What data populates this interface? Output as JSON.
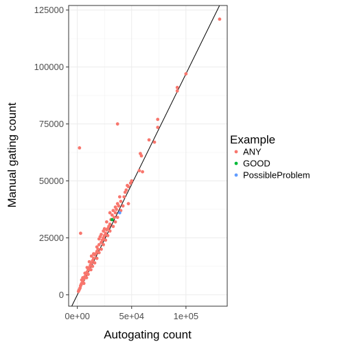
{
  "chart_data": {
    "type": "scatter",
    "xlabel": "Autogating count",
    "ylabel": "Manual gating count",
    "xlim": [
      -8000,
      138000
    ],
    "ylim": [
      -5000,
      127000
    ],
    "x_ticks": [
      0,
      50000,
      100000
    ],
    "x_tick_labels": [
      "0e+00",
      "5e+04",
      "1e+05"
    ],
    "y_ticks": [
      0,
      25000,
      50000,
      75000,
      100000,
      125000
    ],
    "y_tick_labels": [
      "0",
      "25000",
      "50000",
      "75000",
      "100000",
      "125000"
    ],
    "grid": true,
    "reference_line": {
      "intercept": 0,
      "slope": 0.97
    },
    "legend": {
      "title": "Example",
      "placement": "right",
      "entries": [
        {
          "label": "ANY",
          "color": "#F8766D"
        },
        {
          "label": "GOOD",
          "color": "#00BA38"
        },
        {
          "label": "PossibleProblem",
          "color": "#619CFF"
        }
      ]
    },
    "series": [
      {
        "name": "ANY",
        "color": "#F8766D",
        "points": [
          [
            131000,
            121000
          ],
          [
            100000,
            97000
          ],
          [
            92000,
            91000
          ],
          [
            92000,
            89500
          ],
          [
            74000,
            77000
          ],
          [
            74000,
            73500
          ],
          [
            71000,
            67000
          ],
          [
            66000,
            68000
          ],
          [
            58000,
            62000
          ],
          [
            59000,
            61000
          ],
          [
            60000,
            54000
          ],
          [
            57000,
            54500
          ],
          [
            37000,
            75000
          ],
          [
            2000,
            64500
          ],
          [
            3000,
            27000
          ],
          [
            50000,
            50000
          ],
          [
            49000,
            49000
          ],
          [
            47000,
            47500
          ],
          [
            46000,
            48000
          ],
          [
            45000,
            46000
          ],
          [
            44000,
            45000
          ],
          [
            43000,
            43000
          ],
          [
            47000,
            40000
          ],
          [
            40000,
            41000
          ],
          [
            39000,
            43000
          ],
          [
            38000,
            39000
          ],
          [
            37000,
            40000
          ],
          [
            36000,
            37500
          ],
          [
            35000,
            36000
          ],
          [
            33000,
            37000
          ],
          [
            32000,
            35000
          ],
          [
            34000,
            34000
          ],
          [
            31000,
            33000
          ],
          [
            30000,
            31000
          ],
          [
            29000,
            30000
          ],
          [
            28000,
            29000
          ],
          [
            27000,
            28500
          ],
          [
            26000,
            27000
          ],
          [
            25000,
            26000
          ],
          [
            24000,
            25000
          ],
          [
            23000,
            24000
          ],
          [
            22000,
            23000
          ],
          [
            21000,
            25500
          ],
          [
            20000,
            22000
          ],
          [
            19000,
            20000
          ],
          [
            18000,
            19000
          ],
          [
            17000,
            18000
          ],
          [
            16000,
            17500
          ],
          [
            15000,
            16000
          ],
          [
            14000,
            15000
          ],
          [
            13000,
            14000
          ],
          [
            12000,
            13000
          ],
          [
            11000,
            12000
          ],
          [
            10000,
            11000
          ],
          [
            9000,
            10000
          ],
          [
            8000,
            9000
          ],
          [
            7000,
            8000
          ],
          [
            6000,
            7000
          ],
          [
            5000,
            6000
          ],
          [
            4000,
            5000
          ],
          [
            3000,
            4000
          ],
          [
            2000,
            2500
          ],
          [
            1000,
            1500
          ],
          [
            1500,
            2000
          ],
          [
            2500,
            3000
          ],
          [
            3500,
            4500
          ],
          [
            6000,
            5000
          ],
          [
            8500,
            7500
          ],
          [
            10000,
            9000
          ],
          [
            12500,
            11000
          ],
          [
            14000,
            12500
          ],
          [
            16000,
            14000
          ],
          [
            18000,
            16000
          ],
          [
            20000,
            18500
          ],
          [
            22000,
            20000
          ],
          [
            24000,
            22000
          ],
          [
            26000,
            24000
          ],
          [
            28000,
            26000
          ],
          [
            30000,
            28000
          ],
          [
            33000,
            30000
          ],
          [
            35000,
            32000
          ],
          [
            37000,
            34000
          ],
          [
            25000,
            29000
          ],
          [
            15000,
            18000
          ],
          [
            18000,
            21000
          ],
          [
            20000,
            24500
          ],
          [
            27000,
            32000
          ],
          [
            30000,
            36000
          ],
          [
            35000,
            38500
          ],
          [
            40000,
            37000
          ],
          [
            42000,
            39000
          ],
          [
            13000,
            17000
          ],
          [
            11000,
            14500
          ],
          [
            9000,
            12000
          ],
          [
            7000,
            9500
          ],
          [
            5000,
            7500
          ],
          [
            4000,
            6500
          ],
          [
            22000,
            26500
          ],
          [
            24000,
            28000
          ]
        ]
      },
      {
        "name": "GOOD",
        "color": "#00BA38",
        "points": [
          [
            32000,
            33000
          ]
        ]
      },
      {
        "name": "PossibleProblem",
        "color": "#619CFF",
        "points": [
          [
            39000,
            36000
          ]
        ]
      }
    ]
  }
}
